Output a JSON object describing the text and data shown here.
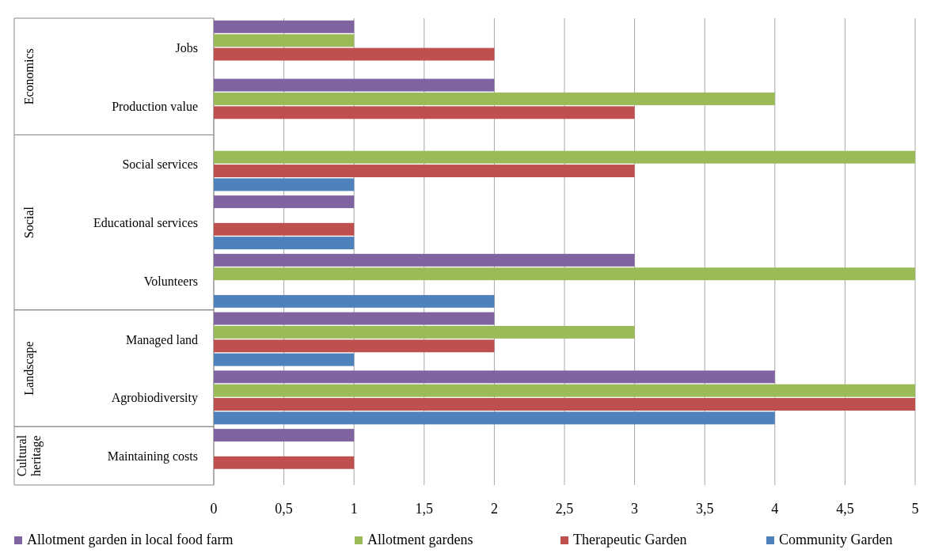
{
  "chart_data": {
    "type": "bar",
    "orientation": "horizontal",
    "categories": [
      "Jobs",
      "Production value",
      "Social services",
      "Educational services",
      "Volunteers",
      "Managed land",
      "Agrobiodiversity",
      "Maintaining costs"
    ],
    "series": [
      {
        "name": "Allotment garden in local food farm",
        "color": "#8064a2",
        "values": [
          1,
          2,
          0,
          1,
          3,
          2,
          4,
          1
        ]
      },
      {
        "name": "Allotment gardens",
        "color": "#9bbb59",
        "values": [
          1,
          4,
          5,
          0,
          5,
          3,
          5,
          0
        ]
      },
      {
        "name": "Therapeutic Garden",
        "color": "#c0504d",
        "values": [
          2,
          3,
          3,
          1,
          0,
          2,
          5,
          1
        ]
      },
      {
        "name": "Community Garden",
        "color": "#4f81bd",
        "values": [
          0,
          0,
          1,
          1,
          2,
          1,
          4,
          0
        ]
      }
    ],
    "xlim": [
      0,
      5
    ],
    "xticks": [
      0,
      {
        "value": 0.5,
        "label": "0,5"
      },
      1,
      {
        "value": 1.5,
        "label": "1,5"
      },
      2,
      {
        "value": 2.5,
        "label": "2,5"
      },
      3,
      {
        "value": 3.5,
        "label": "3,5"
      },
      4,
      {
        "value": 4.5,
        "label": "4,5"
      },
      5
    ],
    "grid": "x",
    "legend": "bottom",
    "annotations": [
      "Economics",
      "Social",
      "Landscape",
      "Cultural heritage"
    ]
  }
}
